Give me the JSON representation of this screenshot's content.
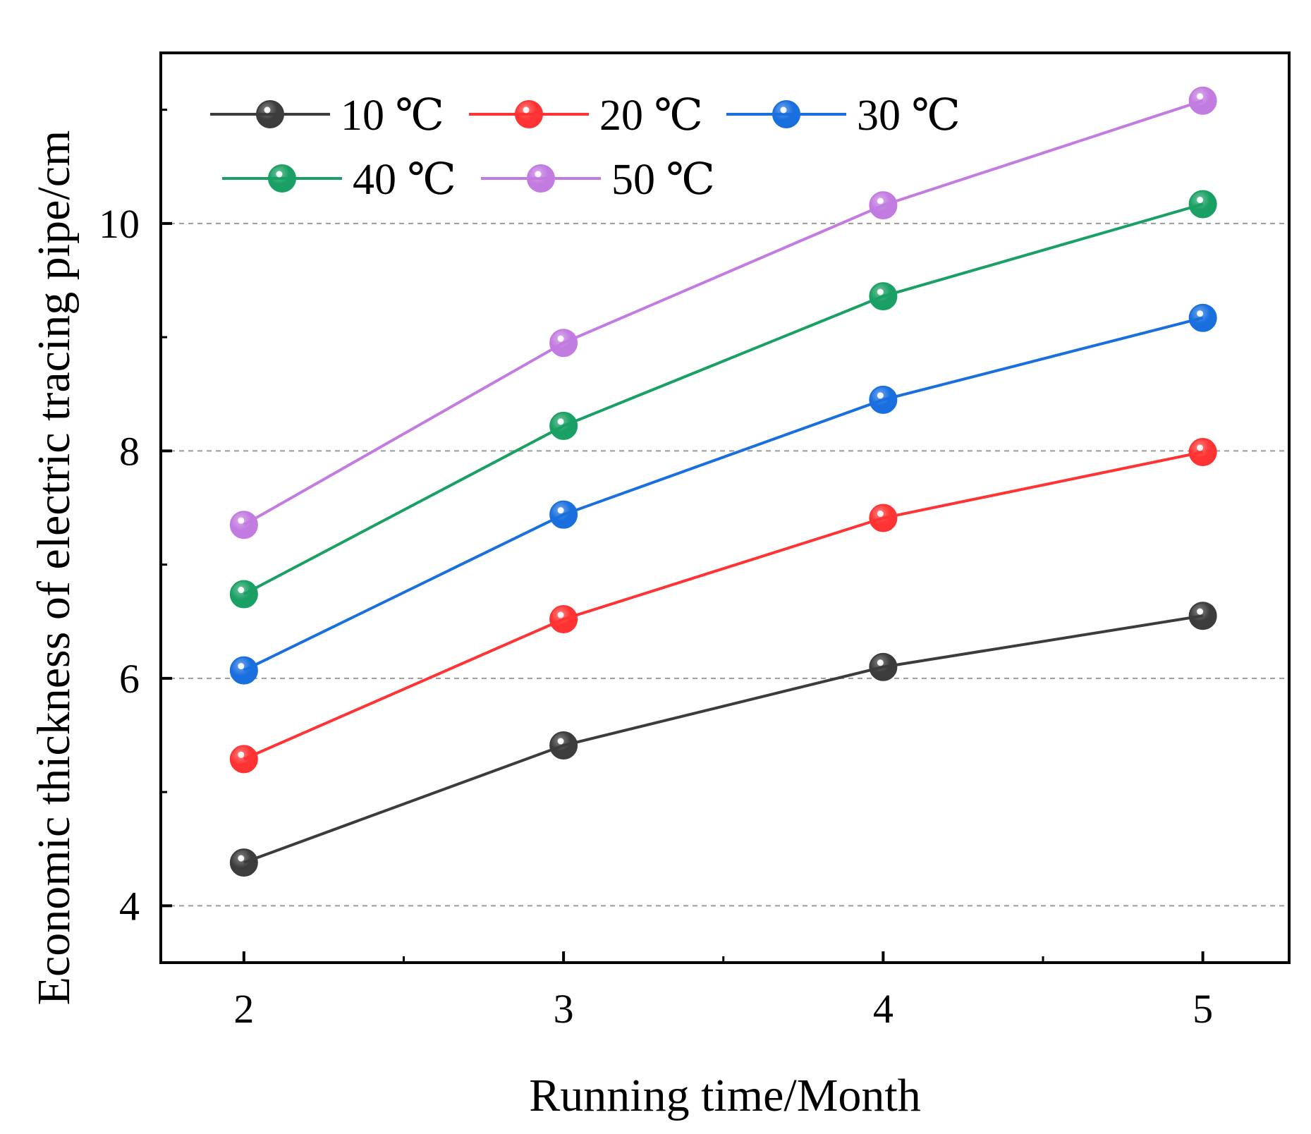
{
  "chart_data": {
    "type": "line",
    "title": "",
    "xlabel": "Running time/Month",
    "ylabel": "Economic thickness of electric tracing pipe/cm",
    "x": [
      2,
      3,
      4,
      5
    ],
    "x_ticks": [
      "2",
      "3",
      "4",
      "5"
    ],
    "xlim": [
      1.74,
      5.27
    ],
    "y_ticks": [
      "4",
      "6",
      "8",
      "10"
    ],
    "ylim": [
      3.5,
      11.5
    ],
    "grid": "horizontal dashed at major y ticks",
    "legend": {
      "placement": "top-left",
      "columns": 3
    },
    "series": [
      {
        "name": "10 ℃",
        "color": "#3c3c3c",
        "values": [
          4.38,
          5.41,
          6.1,
          6.55
        ]
      },
      {
        "name": "20 ℃",
        "color": "#ff3333",
        "values": [
          5.29,
          6.52,
          7.41,
          7.99
        ]
      },
      {
        "name": "30 ℃",
        "color": "#1a6fdf",
        "values": [
          6.07,
          7.44,
          8.45,
          9.17
        ]
      },
      {
        "name": "40 ℃",
        "color": "#1aa064",
        "values": [
          6.74,
          8.22,
          9.36,
          10.17
        ]
      },
      {
        "name": "50 ℃",
        "color": "#c27be0",
        "values": [
          7.35,
          8.95,
          10.16,
          11.08
        ]
      }
    ]
  }
}
